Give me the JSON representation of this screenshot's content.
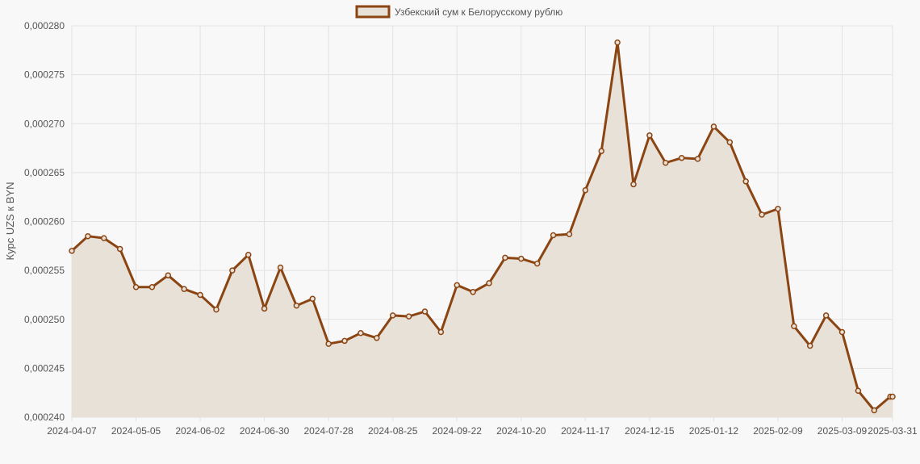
{
  "colors": {
    "line": "#8b4513",
    "fill": "#e8e1d8",
    "grid": "#e2e2e2",
    "text": "#555555",
    "background": "#f8f8f8"
  },
  "chart_data": {
    "type": "area",
    "title": "",
    "xlabel": "",
    "ylabel": "Курс UZS к BYN",
    "legend": {
      "position": "top-center",
      "entries": [
        "Узбекский сум к Белорусскому рублю"
      ]
    },
    "grid": true,
    "ylim": [
      0.00024,
      0.00028
    ],
    "y_ticks": [
      "0,000240",
      "0,000245",
      "0,000250",
      "0,000255",
      "0,000260",
      "0,000265",
      "0,000270",
      "0,000275",
      "0,000280"
    ],
    "x_ticks": [
      "2024-04-07",
      "2024-05-05",
      "2024-06-02",
      "2024-06-30",
      "2024-07-28",
      "2024-08-25",
      "2024-09-22",
      "2024-10-20",
      "2024-11-17",
      "2024-12-15",
      "2025-01-12",
      "2025-02-09",
      "2025-03-09",
      "2025-03-31"
    ],
    "x": [
      "2024-04-07",
      "2024-04-14",
      "2024-04-21",
      "2024-04-28",
      "2024-05-05",
      "2024-05-12",
      "2024-05-19",
      "2024-05-26",
      "2024-06-02",
      "2024-06-09",
      "2024-06-16",
      "2024-06-23",
      "2024-06-30",
      "2024-07-07",
      "2024-07-14",
      "2024-07-21",
      "2024-07-28",
      "2024-08-04",
      "2024-08-11",
      "2024-08-18",
      "2024-08-25",
      "2024-09-01",
      "2024-09-08",
      "2024-09-15",
      "2024-09-22",
      "2024-09-29",
      "2024-10-06",
      "2024-10-13",
      "2024-10-20",
      "2024-10-27",
      "2024-11-03",
      "2024-11-10",
      "2024-11-17",
      "2024-11-24",
      "2024-12-01",
      "2024-12-08",
      "2024-12-15",
      "2024-12-22",
      "2024-12-29",
      "2025-01-05",
      "2025-01-12",
      "2025-01-19",
      "2025-01-26",
      "2025-02-02",
      "2025-02-09",
      "2025-02-16",
      "2025-02-23",
      "2025-03-02",
      "2025-03-09",
      "2025-03-16",
      "2025-03-23",
      "2025-03-30",
      "2025-03-31"
    ],
    "series": [
      {
        "name": "Узбекский сум к Белорусскому рублю",
        "values": [
          0.000257,
          0.0002585,
          0.0002583,
          0.0002572,
          0.0002533,
          0.0002533,
          0.0002545,
          0.0002531,
          0.0002525,
          0.000251,
          0.000255,
          0.0002566,
          0.0002511,
          0.0002553,
          0.0002514,
          0.0002521,
          0.0002475,
          0.0002478,
          0.0002486,
          0.0002481,
          0.0002504,
          0.0002503,
          0.0002508,
          0.0002487,
          0.0002535,
          0.0002528,
          0.0002537,
          0.0002563,
          0.0002562,
          0.0002557,
          0.0002586,
          0.0002587,
          0.0002632,
          0.0002672,
          0.0002783,
          0.0002638,
          0.0002688,
          0.000266,
          0.0002665,
          0.0002664,
          0.0002697,
          0.0002681,
          0.0002641,
          0.0002607,
          0.0002613,
          0.0002493,
          0.0002473,
          0.0002504,
          0.0002487,
          0.0002427,
          0.0002407,
          0.0002421,
          0.0002421
        ]
      }
    ]
  }
}
